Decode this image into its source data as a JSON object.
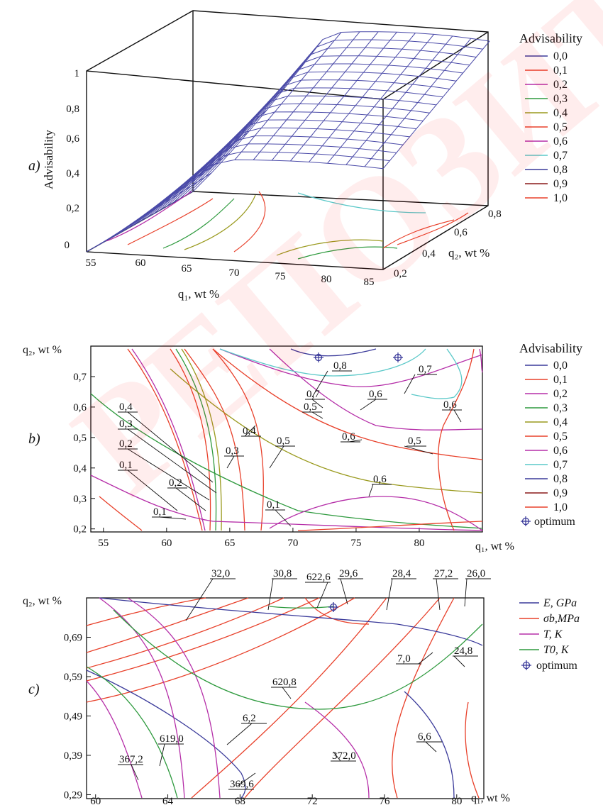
{
  "watermark": "РЕПОЗИТОРИЙ КазНУ",
  "panels": {
    "a": "a)",
    "b": "b)",
    "c": "c)"
  },
  "chart_data": [
    {
      "type": "surface",
      "panel": "a",
      "zlabel": "Advisability",
      "xlabel": "q₁, wt %",
      "ylabel": "q₂, wt %",
      "x_ticks": [
        "55",
        "60",
        "65",
        "70",
        "75",
        "80",
        "85"
      ],
      "y_ticks": [
        "0,2",
        "0,4",
        "0,6",
        "0,8"
      ],
      "z_ticks": [
        "0",
        "0,2",
        "0,4",
        "0,6",
        "0,8",
        "1"
      ],
      "xlim": [
        55,
        85
      ],
      "ylim": [
        0.2,
        0.8
      ],
      "zlim": [
        0,
        1
      ],
      "legend_title": "Advisability",
      "legend": [
        "0,0",
        "0,1",
        "0,2",
        "0,3",
        "0,4",
        "0,5",
        "0,6",
        "0,7",
        "0,8",
        "0,9",
        "1,0"
      ],
      "legend_colors": [
        "#3a3a9a",
        "#e8402a",
        "#b52ea8",
        "#2e9a3e",
        "#9a9a1e",
        "#e8402a",
        "#b52ea8",
        "#5ac8c8",
        "#3a3a9a",
        "#8a1a1a",
        "#e8402a"
      ]
    },
    {
      "type": "contour",
      "panel": "b",
      "xlabel": "q₁, wt %",
      "ylabel": "q₂, wt %",
      "x_ticks": [
        "55",
        "60",
        "65",
        "70",
        "75",
        "80"
      ],
      "y_ticks": [
        "0,2",
        "0,3",
        "0,4",
        "0,5",
        "0,6",
        "0,7"
      ],
      "xlim": [
        54,
        85
      ],
      "ylim": [
        0.19,
        0.8
      ],
      "legend_title": "Advisability",
      "legend": [
        "0,0",
        "0,1",
        "0,2",
        "0,3",
        "0,4",
        "0,5",
        "0,6",
        "0,7",
        "0,8",
        "0,9",
        "1,0"
      ],
      "optimum_label": "optimum",
      "contour_labels": [
        "0,8",
        "0,7",
        "0,7",
        "0,5",
        "0,6",
        "0,6",
        "0,4",
        "0,4",
        "0,3",
        "0,3",
        "0,5",
        "0,5",
        "0,2",
        "0,2",
        "0,1",
        "0,1",
        "0,1",
        "0,6",
        "0,6"
      ],
      "optimum_points": [
        [
          72.5,
          0.765
        ],
        [
          78.6,
          0.765
        ]
      ]
    },
    {
      "type": "contour",
      "panel": "c",
      "xlabel": "q₁, wt %",
      "ylabel": "q₂, wt %",
      "x_ticks": [
        "60",
        "64",
        "68",
        "72",
        "76",
        "80"
      ],
      "y_ticks": [
        "0,29",
        "0,39",
        "0,49",
        "0,59",
        "0,69"
      ],
      "xlim": [
        59.5,
        81.5
      ],
      "ylim": [
        0.28,
        0.79
      ],
      "series": [
        {
          "name": "E, GPa",
          "color": "#3a3a9a"
        },
        {
          "name": "σb,MPa",
          "color": "#e8402a"
        },
        {
          "name": "T, K",
          "color": "#b52ea8"
        },
        {
          "name": "T0, K",
          "color": "#2e9a3e"
        }
      ],
      "optimum_label": "optimum",
      "contour_labels": [
        "32,0",
        "30,8",
        "622,6",
        "29,6",
        "28,4",
        "27,2",
        "26,0",
        "7,0",
        "24,8",
        "620,8",
        "6,2",
        "619,0",
        "367,2",
        "369,6",
        "372,0",
        "6,6"
      ],
      "optimum_points": [
        [
          72.4,
          0.772
        ]
      ]
    }
  ]
}
